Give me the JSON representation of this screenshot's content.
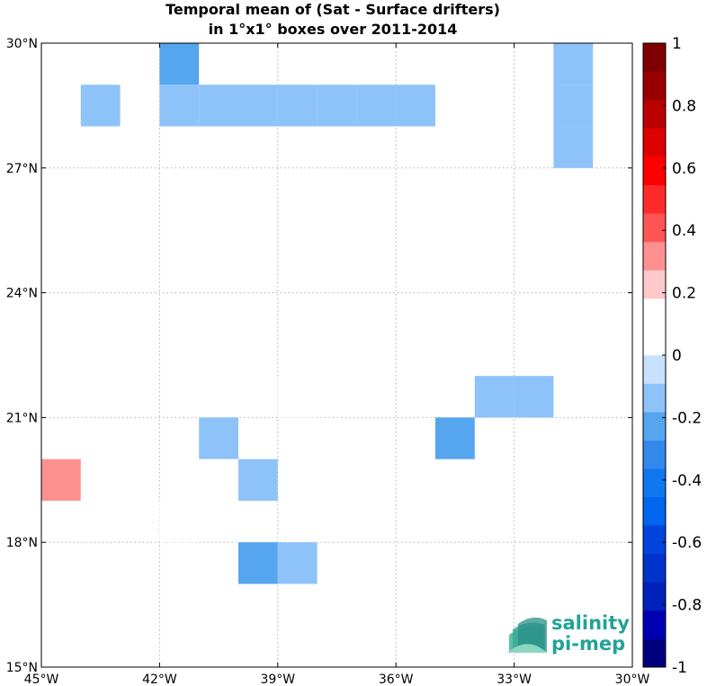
{
  "figure": {
    "title_line1": "Temporal mean of (Sat - Surface drifters)",
    "title_line2": "in 1°x1° boxes over 2011-2014"
  },
  "axes": {
    "lon_range": [
      -45,
      -30
    ],
    "lat_range": [
      15,
      30
    ],
    "x_ticks": [
      {
        "value": -45,
        "label": "45°W"
      },
      {
        "value": -42,
        "label": "42°W"
      },
      {
        "value": -39,
        "label": "39°W"
      },
      {
        "value": -36,
        "label": "36°W"
      },
      {
        "value": -33,
        "label": "33°W"
      },
      {
        "value": -30,
        "label": "30°W"
      }
    ],
    "y_ticks": [
      {
        "value": 15,
        "label": "15°N"
      },
      {
        "value": 18,
        "label": "18°N"
      },
      {
        "value": 21,
        "label": "21°N"
      },
      {
        "value": 24,
        "label": "24°N"
      },
      {
        "value": 27,
        "label": "27°N"
      },
      {
        "value": 30,
        "label": "30°N"
      }
    ],
    "grid": true
  },
  "chart_data": {
    "type": "heatmap",
    "x_unit": "degrees longitude",
    "y_unit": "degrees latitude",
    "cell_size_deg": 1,
    "cells": [
      {
        "lon": -42,
        "lat": 29,
        "value": -0.25
      },
      {
        "lon": -44,
        "lat": 28,
        "value": -0.15
      },
      {
        "lon": -42,
        "lat": 28,
        "value": -0.15
      },
      {
        "lon": -41,
        "lat": 28,
        "value": -0.15
      },
      {
        "lon": -40,
        "lat": 28,
        "value": -0.15
      },
      {
        "lon": -39,
        "lat": 28,
        "value": -0.15
      },
      {
        "lon": -38,
        "lat": 28,
        "value": -0.15
      },
      {
        "lon": -37,
        "lat": 28,
        "value": -0.15
      },
      {
        "lon": -36,
        "lat": 28,
        "value": -0.15
      },
      {
        "lon": -32,
        "lat": 29,
        "value": -0.15
      },
      {
        "lon": -32,
        "lat": 28,
        "value": -0.15
      },
      {
        "lon": -32,
        "lat": 27,
        "value": -0.15
      },
      {
        "lon": -39,
        "lat": 21,
        "value": 0.15
      },
      {
        "lon": -34,
        "lat": 21,
        "value": -0.15
      },
      {
        "lon": -33,
        "lat": 21,
        "value": -0.15
      },
      {
        "lon": -41,
        "lat": 20,
        "value": -0.15
      },
      {
        "lon": -35,
        "lat": 20,
        "value": -0.25
      },
      {
        "lon": -45,
        "lat": 19,
        "value": 0.35
      },
      {
        "lon": -41,
        "lat": 19,
        "value": 0.15
      },
      {
        "lon": -40,
        "lat": 19,
        "value": -0.15
      },
      {
        "lon": -42,
        "lat": 18,
        "value": 0.15
      },
      {
        "lon": -40,
        "lat": 17,
        "value": -0.25
      },
      {
        "lon": -39,
        "lat": 17,
        "value": -0.15
      }
    ],
    "colorbar": {
      "range": [
        -1,
        1
      ],
      "colors": [
        "#00007f",
        "#0000b2",
        "#0022bb",
        "#0033cc",
        "#0044dd",
        "#0066ee",
        "#1177ee",
        "#3388ee",
        "#55a5ef",
        "#8ec3f9",
        "#c7e0fc",
        "#ffffff",
        "#ffffff",
        "#ffc9c9",
        "#ff9090",
        "#ff5555",
        "#ff2a2a",
        "#ff0000",
        "#dd0000",
        "#bb0000",
        "#990000",
        "#7f0000"
      ],
      "ticks": [
        {
          "value": 1,
          "label": "1"
        },
        {
          "value": 0.8,
          "label": "0.8"
        },
        {
          "value": 0.6,
          "label": "0.6"
        },
        {
          "value": 0.4,
          "label": "0.4"
        },
        {
          "value": 0.2,
          "label": "0.2"
        },
        {
          "value": 0,
          "label": "0"
        },
        {
          "value": -0.2,
          "label": "-0.2"
        },
        {
          "value": -0.4,
          "label": "-0.4"
        },
        {
          "value": -0.6,
          "label": "-0.6"
        },
        {
          "value": -0.8,
          "label": "-0.8"
        },
        {
          "value": -1,
          "label": "-1"
        }
      ]
    }
  },
  "logo": {
    "line1": "salinity",
    "line2": "pi-mep",
    "color": "#22a396"
  }
}
